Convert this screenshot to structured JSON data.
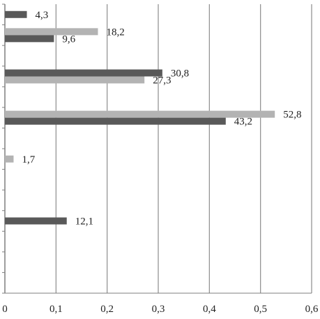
{
  "chart_data": {
    "type": "bar",
    "orientation": "horizontal",
    "title": "",
    "xlabel": "",
    "ylabel": "",
    "xlim": [
      0,
      0.6
    ],
    "x_ticks": [
      0,
      0.1,
      0.2,
      0.3,
      0.4,
      0.5,
      0.6
    ],
    "x_tick_labels": [
      "0",
      "0,1",
      "0,2",
      "0,3",
      "0,4",
      "0,5",
      "0,6"
    ],
    "grid": "vertical",
    "category_count": 14,
    "bars": [
      {
        "category_index": 0,
        "series": "dark",
        "value": 0.043,
        "label": "4,3"
      },
      {
        "category_index": 1,
        "series": "light",
        "value": 0.182,
        "label": "18,2"
      },
      {
        "category_index": 1,
        "series": "dark",
        "value": 0.096,
        "label": "9,6"
      },
      {
        "category_index": 3,
        "series": "dark",
        "value": 0.308,
        "label": "30,8"
      },
      {
        "category_index": 3,
        "series": "light",
        "value": 0.273,
        "label": "27,3"
      },
      {
        "category_index": 5,
        "series": "light",
        "value": 0.528,
        "label": "52,8"
      },
      {
        "category_index": 5,
        "series": "dark",
        "value": 0.432,
        "label": "43,2"
      },
      {
        "category_index": 7,
        "series": "light",
        "value": 0.017,
        "label": "1,7"
      },
      {
        "category_index": 10,
        "series": "dark",
        "value": 0.121,
        "label": "12,1"
      }
    ],
    "colors": {
      "dark": "#595959",
      "light": "#b3b3b3",
      "grid": "#8c8c8c",
      "axis": "#7f7f7f"
    }
  }
}
